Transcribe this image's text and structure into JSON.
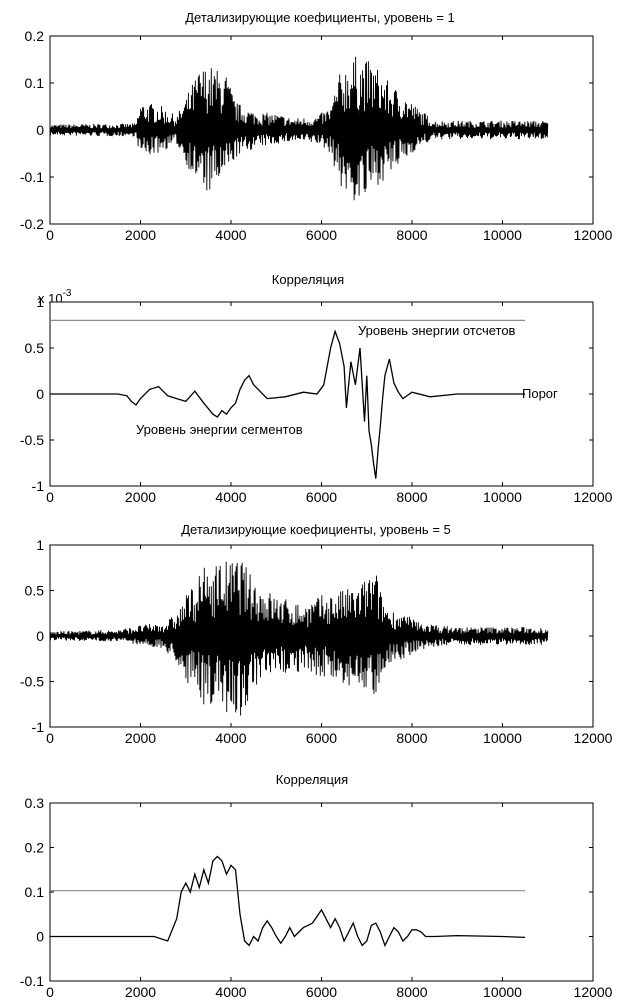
{
  "chart_data": [
    {
      "type": "line",
      "title": "Детализирующие коефициенты, уровень = 1",
      "xlim": [
        0,
        12000
      ],
      "ylim": [
        -0.2,
        0.2
      ],
      "xticks": [
        "0",
        "2000",
        "4000",
        "6000",
        "8000",
        "10000",
        "12000"
      ],
      "yticks": [
        "0.2",
        "0.1",
        "0",
        "-0.1",
        "-0.2"
      ],
      "series": [
        {
          "envelope_x": [
            0,
            1900,
            2000,
            2400,
            2800,
            3100,
            3300,
            3500,
            3700,
            3900,
            4100,
            4500,
            5000,
            5400,
            5900,
            6200,
            6400,
            6600,
            6800,
            7000,
            7200,
            7500,
            7800,
            8100,
            8500,
            9000,
            10000,
            11000
          ],
          "envelope_upper": [
            0.012,
            0.014,
            0.06,
            0.055,
            0.03,
            0.09,
            0.13,
            0.14,
            0.13,
            0.12,
            0.06,
            0.04,
            0.035,
            0.025,
            0.03,
            0.05,
            0.12,
            0.15,
            0.16,
            0.15,
            0.14,
            0.1,
            0.08,
            0.05,
            0.02,
            0.02,
            0.02,
            0.02
          ],
          "envelope_lower": [
            -0.012,
            -0.014,
            -0.06,
            -0.05,
            -0.03,
            -0.09,
            -0.12,
            -0.14,
            -0.12,
            -0.1,
            -0.06,
            -0.04,
            -0.03,
            -0.025,
            -0.03,
            -0.05,
            -0.12,
            -0.15,
            -0.16,
            -0.15,
            -0.12,
            -0.1,
            -0.07,
            -0.04,
            -0.02,
            -0.02,
            -0.02,
            -0.02
          ]
        }
      ]
    },
    {
      "type": "line",
      "title": "Корреляция",
      "y_multiplier": "x 10",
      "y_exponent": "-3",
      "xlim": [
        0,
        12000
      ],
      "ylim": [
        -1,
        1
      ],
      "xticks": [
        "0",
        "2000",
        "4000",
        "6000",
        "8000",
        "10000",
        "12000"
      ],
      "yticks": [
        "1",
        "0.5",
        "0",
        "-0.5",
        "-1"
      ],
      "threshold": 0.8,
      "threshold_xlim": [
        0,
        10500
      ],
      "annotations": {
        "upper_line": "Уровень энергии отсчетов",
        "zero_line": "Порог",
        "signal": "Уровень энергии сегментов"
      },
      "series": [
        {
          "x": [
            0,
            1500,
            1700,
            1800,
            1900,
            2000,
            2200,
            2400,
            2600,
            2800,
            3000,
            3200,
            3400,
            3500,
            3600,
            3700,
            3800,
            3900,
            4000,
            4100,
            4200,
            4300,
            4400,
            4500,
            4800,
            5200,
            5600,
            5900,
            6050,
            6200,
            6300,
            6400,
            6500,
            6550,
            6650,
            6750,
            6850,
            6950,
            7000,
            7050,
            7100,
            7150,
            7200,
            7250,
            7300,
            7350,
            7400,
            7500,
            7600,
            7700,
            7800,
            8000,
            8400,
            9000,
            9500,
            10500
          ],
          "y": [
            0,
            0,
            -0.02,
            -0.08,
            -0.12,
            -0.05,
            0.05,
            0.08,
            -0.02,
            -0.05,
            -0.08,
            0.03,
            -0.1,
            -0.16,
            -0.22,
            -0.25,
            -0.18,
            -0.22,
            -0.15,
            -0.1,
            0.05,
            0.15,
            0.2,
            0.1,
            -0.05,
            -0.03,
            0.02,
            0.0,
            0.1,
            0.5,
            0.68,
            0.55,
            0.3,
            -0.15,
            0.35,
            0.1,
            0.5,
            -0.3,
            0.2,
            -0.4,
            -0.55,
            -0.75,
            -0.92,
            -0.6,
            -0.35,
            -0.05,
            0.2,
            0.38,
            0.12,
            0.02,
            -0.05,
            0.02,
            -0.03,
            0.0,
            0.0,
            0.0
          ]
        }
      ]
    },
    {
      "type": "line",
      "title": "Детализирующие коефициенты, уровень = 5",
      "xlim": [
        0,
        12000
      ],
      "ylim": [
        -1,
        1
      ],
      "xticks": [
        "0",
        "2000",
        "4000",
        "6000",
        "8000",
        "10000",
        "12000"
      ],
      "yticks": [
        "1",
        "0.5",
        "0",
        "-0.5",
        "-1"
      ],
      "series": [
        {
          "envelope_x": [
            0,
            1500,
            2000,
            2500,
            2800,
            3000,
            3200,
            3400,
            3600,
            3800,
            4000,
            4200,
            4400,
            4700,
            5000,
            5300,
            5600,
            6000,
            6400,
            6800,
            7200,
            7300,
            7500,
            7800,
            8200,
            8600,
            9000,
            10000,
            11000
          ],
          "envelope_upper": [
            0.05,
            0.07,
            0.12,
            0.15,
            0.25,
            0.45,
            0.6,
            0.75,
            0.8,
            0.85,
            0.82,
            0.9,
            0.7,
            0.55,
            0.45,
            0.4,
            0.35,
            0.45,
            0.5,
            0.55,
            0.75,
            0.5,
            0.3,
            0.25,
            0.15,
            0.12,
            0.1,
            0.1,
            0.1
          ],
          "envelope_lower": [
            -0.05,
            -0.06,
            -0.1,
            -0.15,
            -0.3,
            -0.5,
            -0.65,
            -0.75,
            -0.8,
            -0.85,
            -0.85,
            -0.9,
            -0.7,
            -0.55,
            -0.45,
            -0.4,
            -0.4,
            -0.45,
            -0.55,
            -0.6,
            -0.7,
            -0.45,
            -0.3,
            -0.25,
            -0.15,
            -0.12,
            -0.1,
            -0.1,
            -0.1
          ]
        }
      ]
    },
    {
      "type": "line",
      "title": "Корреляция",
      "xlim": [
        0,
        12000
      ],
      "ylim": [
        -0.1,
        0.3
      ],
      "xticks": [
        "0",
        "2000",
        "4000",
        "6000",
        "8000",
        "10000",
        "12000"
      ],
      "yticks": [
        "0.3",
        "0.2",
        "0.1",
        "0",
        "-0.1"
      ],
      "threshold": 0.103,
      "threshold_xlim": [
        0,
        10500
      ],
      "series": [
        {
          "x": [
            0,
            1800,
            2300,
            2600,
            2800,
            2900,
            3000,
            3100,
            3200,
            3300,
            3400,
            3500,
            3600,
            3700,
            3800,
            3900,
            4000,
            4100,
            4200,
            4300,
            4400,
            4500,
            4600,
            4700,
            4800,
            4900,
            5000,
            5100,
            5200,
            5300,
            5400,
            5500,
            5600,
            5700,
            5800,
            5900,
            6000,
            6100,
            6200,
            6300,
            6400,
            6500,
            6600,
            6700,
            6800,
            6900,
            7000,
            7100,
            7200,
            7300,
            7400,
            7500,
            7600,
            7700,
            7800,
            7900,
            8000,
            8100,
            8200,
            8300,
            8500,
            9000,
            10000,
            10500
          ],
          "y": [
            0,
            0,
            0,
            -0.01,
            0.04,
            0.1,
            0.12,
            0.1,
            0.14,
            0.11,
            0.15,
            0.12,
            0.17,
            0.18,
            0.17,
            0.14,
            0.16,
            0.15,
            0.05,
            -0.01,
            -0.02,
            0.0,
            -0.01,
            0.02,
            0.035,
            0.02,
            0.0,
            -0.015,
            0.0,
            0.02,
            0.0,
            0.01,
            0.02,
            0.025,
            0.03,
            0.045,
            0.06,
            0.04,
            0.02,
            0.04,
            0.02,
            -0.01,
            0.01,
            0.03,
            0.0,
            -0.02,
            -0.01,
            0.025,
            0.03,
            0.01,
            -0.02,
            0.0,
            0.02,
            0.01,
            -0.01,
            0.0,
            0.015,
            0.015,
            0.01,
            0.0,
            0.0,
            0.002,
            0.0,
            -0.002
          ]
        }
      ]
    }
  ]
}
